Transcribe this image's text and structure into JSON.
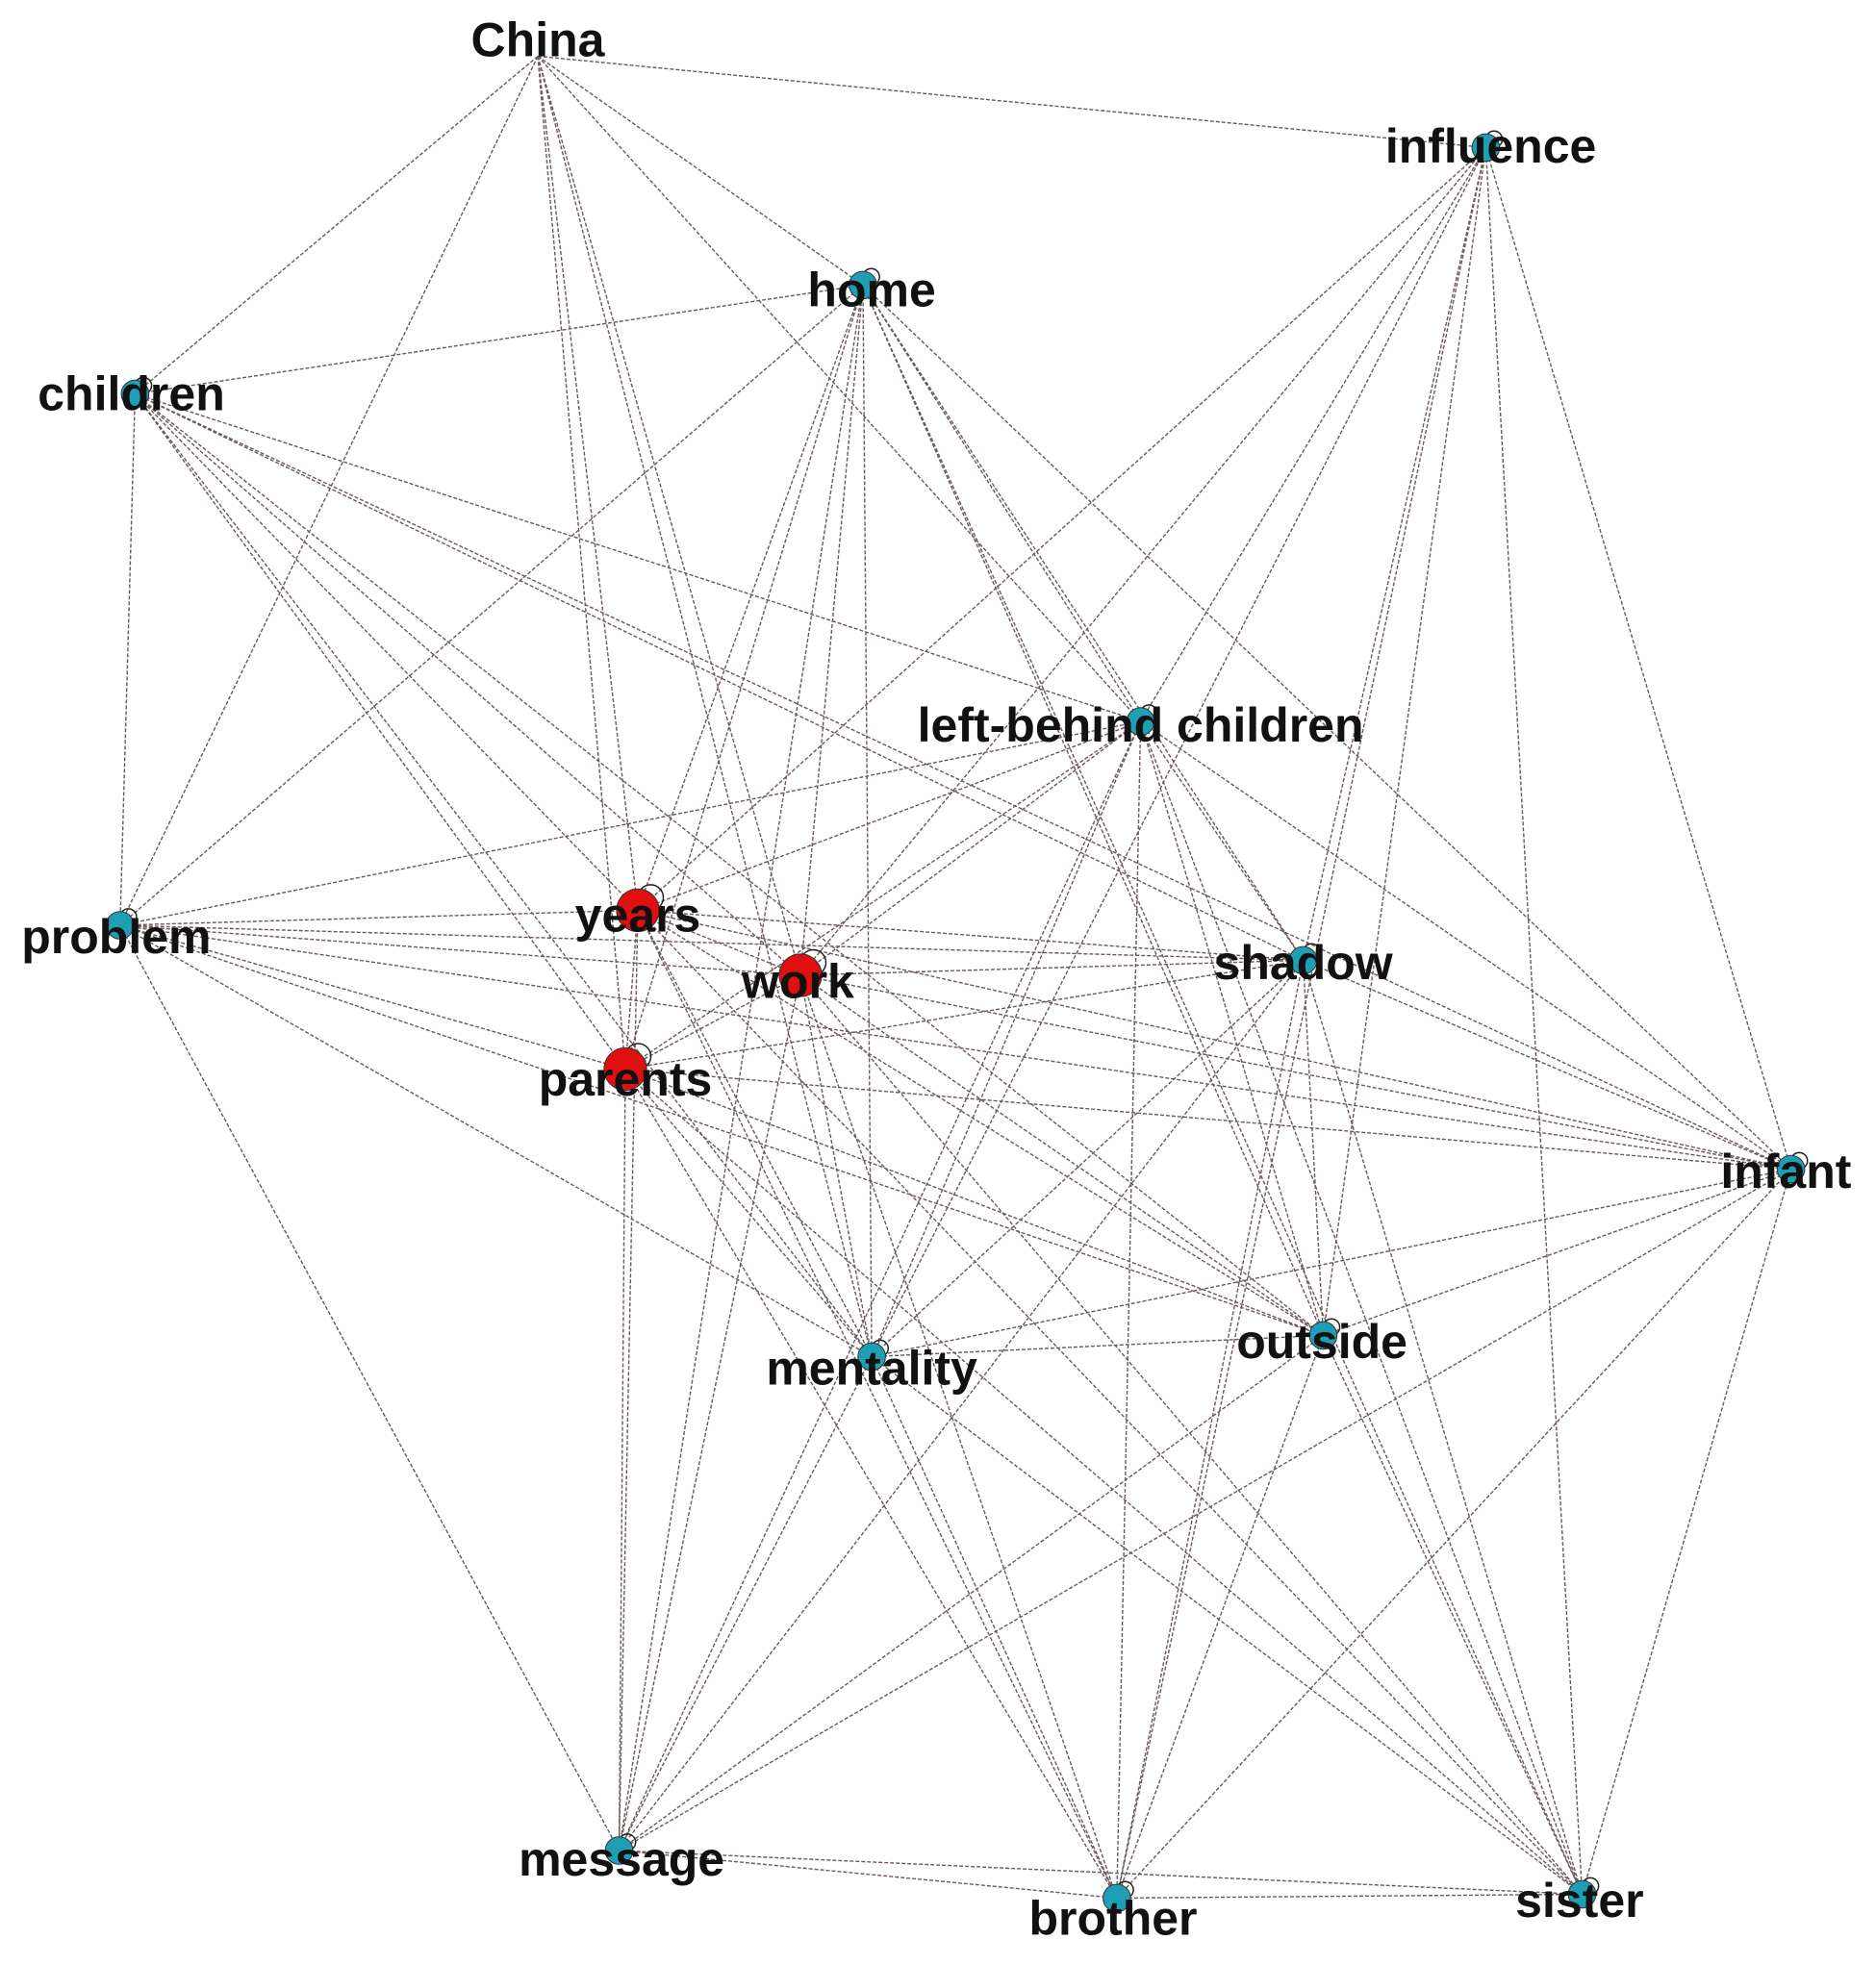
{
  "nodes": [
    {
      "label": "China"
    },
    {
      "label": "influence",
      "color": "#1e9fb4"
    },
    {
      "label": "home",
      "color": "#1e9fb4"
    },
    {
      "label": "children",
      "color": "#1e9fb4"
    },
    {
      "label": "left-behind children",
      "color": "#1e9fb4"
    },
    {
      "label": "problem",
      "color": "#1e9fb4"
    },
    {
      "label": "years",
      "color": "#e01010"
    },
    {
      "label": "work",
      "color": "#e01010"
    },
    {
      "label": "shadow",
      "color": "#1e9fb4"
    },
    {
      "label": "parents",
      "color": "#e01010"
    },
    {
      "label": "infant",
      "color": "#1e9fb4"
    },
    {
      "label": "mentality",
      "color": "#1e9fb4"
    },
    {
      "label": "outside",
      "color": "#1e9fb4"
    },
    {
      "label": "message",
      "color": "#1e9fb4"
    },
    {
      "label": "brother",
      "color": "#1e9fb4"
    },
    {
      "label": "sister",
      "color": "#1e9fb4"
    }
  ]
}
